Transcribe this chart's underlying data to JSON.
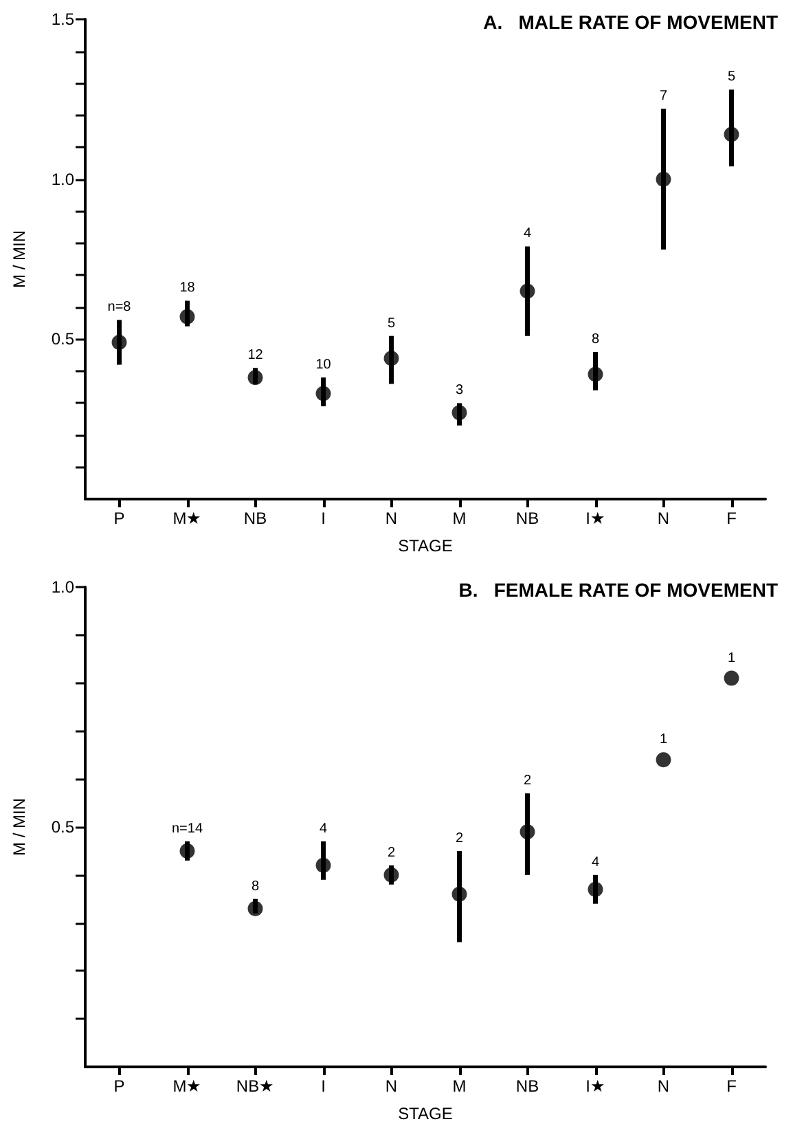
{
  "chart_data": [
    {
      "type": "scatter",
      "title": "A.   MALE RATE OF MOVEMENT",
      "xlabel": "STAGE",
      "ylabel": "M / MIN",
      "categories": [
        "P",
        "M★",
        "NB",
        "I",
        "N",
        "M",
        "NB",
        "I★",
        "N",
        "F"
      ],
      "marker": "circle",
      "ylim": [
        0,
        1.5
      ],
      "yticks": [
        {
          "value": 0.1,
          "label": null
        },
        {
          "value": 0.2,
          "label": null
        },
        {
          "value": 0.3,
          "label": null
        },
        {
          "value": 0.4,
          "label": null
        },
        {
          "value": 0.5,
          "label": "0.5"
        },
        {
          "value": 0.6,
          "label": null
        },
        {
          "value": 0.7,
          "label": null
        },
        {
          "value": 0.8,
          "label": null
        },
        {
          "value": 0.9,
          "label": null
        },
        {
          "value": 1,
          "label": "1.0"
        },
        {
          "value": 1.1,
          "label": null
        },
        {
          "value": 1.2,
          "label": null
        },
        {
          "value": 1.3,
          "label": null
        },
        {
          "value": 1.4,
          "label": null
        },
        {
          "value": 1.5,
          "label": "1.5"
        }
      ],
      "series": [
        {
          "color": "#000000",
          "values": [
            0.49,
            0.57,
            0.38,
            0.33,
            0.44,
            0.27,
            0.65,
            0.39,
            1.0,
            1.14
          ],
          "errors": [
            [
              0.42,
              0.56
            ],
            [
              0.54,
              0.62
            ],
            [
              0.36,
              0.41
            ],
            [
              0.29,
              0.38
            ],
            [
              0.36,
              0.51
            ],
            [
              0.23,
              0.3
            ],
            [
              0.51,
              0.79
            ],
            [
              0.34,
              0.46
            ],
            [
              0.78,
              1.22
            ],
            [
              1.04,
              1.28
            ]
          ]
        }
      ],
      "annotations": [
        "n=8",
        "18",
        "12",
        "10",
        "5",
        "3",
        "4",
        "8",
        "7",
        "5"
      ]
    },
    {
      "type": "scatter",
      "title": "B.   FEMALE RATE OF MOVEMENT",
      "xlabel": "STAGE",
      "ylabel": "M / MIN",
      "categories": [
        "P",
        "M★",
        "NB★",
        "I",
        "N",
        "M",
        "NB",
        "I★",
        "N",
        "F"
      ],
      "marker": "circle",
      "ylim": [
        0,
        1
      ],
      "yticks": [
        {
          "value": 0.1,
          "label": null
        },
        {
          "value": 0.2,
          "label": null
        },
        {
          "value": 0.3,
          "label": null
        },
        {
          "value": 0.4,
          "label": null
        },
        {
          "value": 0.5,
          "label": "0.5"
        },
        {
          "value": 0.6,
          "label": null
        },
        {
          "value": 0.7,
          "label": null
        },
        {
          "value": 0.8,
          "label": null
        },
        {
          "value": 0.9,
          "label": null
        },
        {
          "value": 1,
          "label": "1.0"
        }
      ],
      "series": [
        {
          "color": "#000000",
          "values": [
            null,
            0.45,
            0.33,
            0.42,
            0.4,
            0.36,
            0.49,
            0.37,
            0.64,
            0.81
          ],
          "errors": [
            null,
            [
              0.43,
              0.47
            ],
            [
              0.32,
              0.35
            ],
            [
              0.39,
              0.47
            ],
            [
              0.38,
              0.42
            ],
            [
              0.26,
              0.45
            ],
            [
              0.4,
              0.57
            ],
            [
              0.34,
              0.4
            ],
            null,
            null
          ]
        }
      ],
      "annotations": [
        "n=14",
        "8",
        "4",
        "2",
        "2",
        "2",
        "4",
        "1",
        "1"
      ]
    }
  ]
}
